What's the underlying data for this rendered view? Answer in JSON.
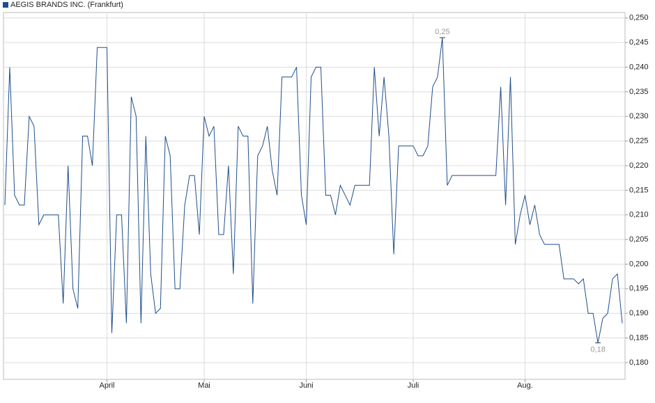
{
  "chart_data": {
    "type": "line",
    "categories": [
      null,
      null,
      null,
      null,
      null,
      null,
      null,
      null,
      null,
      null,
      null,
      null,
      null,
      null,
      null,
      null,
      null,
      null,
      null,
      null,
      null,
      "April",
      null,
      null,
      null,
      null,
      null,
      null,
      null,
      null,
      null,
      null,
      null,
      null,
      null,
      null,
      null,
      null,
      null,
      null,
      null,
      "Mai",
      null,
      null,
      null,
      null,
      null,
      null,
      null,
      null,
      null,
      null,
      null,
      null,
      null,
      null,
      null,
      null,
      null,
      null,
      null,
      null,
      "Juni",
      null,
      null,
      null,
      null,
      null,
      null,
      null,
      null,
      null,
      null,
      null,
      null,
      null,
      null,
      null,
      null,
      null,
      null,
      null,
      null,
      null,
      "Juli",
      null,
      null,
      null,
      null,
      null,
      null,
      null,
      null,
      null,
      null,
      null,
      null,
      null,
      null,
      null,
      null,
      null,
      null,
      null,
      null,
      null,
      null,
      "Aug.",
      null,
      null,
      null,
      null,
      null,
      null,
      null,
      null,
      null,
      null,
      null,
      null,
      null,
      null,
      null,
      null,
      null,
      null,
      null,
      null
    ],
    "series": [
      {
        "name": "AEGIS BRANDS INC. (Frankfurt)",
        "color": "#1f4e8c",
        "values": [
          0.212,
          0.24,
          0.214,
          0.212,
          0.212,
          0.23,
          0.228,
          0.208,
          0.21,
          0.21,
          0.21,
          0.21,
          0.192,
          0.22,
          0.195,
          0.191,
          0.226,
          0.226,
          0.22,
          0.244,
          0.244,
          0.244,
          0.186,
          0.21,
          0.21,
          0.188,
          0.234,
          0.23,
          0.188,
          0.226,
          0.198,
          0.19,
          0.191,
          0.226,
          0.222,
          0.195,
          0.195,
          0.212,
          0.218,
          0.218,
          0.206,
          0.23,
          0.226,
          0.228,
          0.206,
          0.206,
          0.22,
          0.198,
          0.228,
          0.226,
          0.226,
          0.192,
          0.222,
          0.224,
          0.228,
          0.219,
          0.214,
          0.238,
          0.238,
          0.238,
          0.24,
          0.214,
          0.208,
          0.238,
          0.24,
          0.24,
          0.214,
          0.214,
          0.21,
          0.216,
          0.214,
          0.212,
          0.216,
          0.216,
          0.216,
          0.216,
          0.24,
          0.226,
          0.238,
          0.226,
          0.202,
          0.224,
          0.224,
          0.224,
          0.224,
          0.222,
          0.222,
          0.224,
          0.236,
          0.238,
          0.246,
          0.216,
          0.218,
          0.218,
          0.218,
          0.218,
          0.218,
          0.218,
          0.218,
          0.218,
          0.218,
          0.218,
          0.236,
          0.212,
          0.238,
          0.204,
          0.21,
          0.214,
          0.208,
          0.212,
          0.206,
          0.204,
          0.204,
          0.204,
          0.204,
          0.197,
          0.197,
          0.197,
          0.196,
          0.197,
          0.19,
          0.19,
          0.184,
          0.189,
          0.19,
          0.197,
          0.198,
          0.188
        ]
      }
    ],
    "annotations": [
      {
        "value": 0.246,
        "label": "0,25",
        "position": "above"
      },
      {
        "value": 0.184,
        "label": "0,18",
        "position": "below"
      }
    ],
    "ylim": [
      0.1766,
      0.2511
    ],
    "yticks": [
      {
        "value": 0.18,
        "label": "0,180"
      },
      {
        "value": 0.185,
        "label": "0,185"
      },
      {
        "value": 0.19,
        "label": "0,190"
      },
      {
        "value": 0.195,
        "label": "0,195"
      },
      {
        "value": 0.2,
        "label": "0,200"
      },
      {
        "value": 0.205,
        "label": "0,205"
      },
      {
        "value": 0.21,
        "label": "0,210"
      },
      {
        "value": 0.215,
        "label": "0,215"
      },
      {
        "value": 0.22,
        "label": "0,220"
      },
      {
        "value": 0.225,
        "label": "0,225"
      },
      {
        "value": 0.23,
        "label": "0,230"
      },
      {
        "value": 0.235,
        "label": "0,235"
      },
      {
        "value": 0.24,
        "label": "0,240"
      },
      {
        "value": 0.245,
        "label": "0,245"
      },
      {
        "value": 0.25,
        "label": "0,250"
      }
    ],
    "grid": true,
    "legend": "top-left"
  }
}
